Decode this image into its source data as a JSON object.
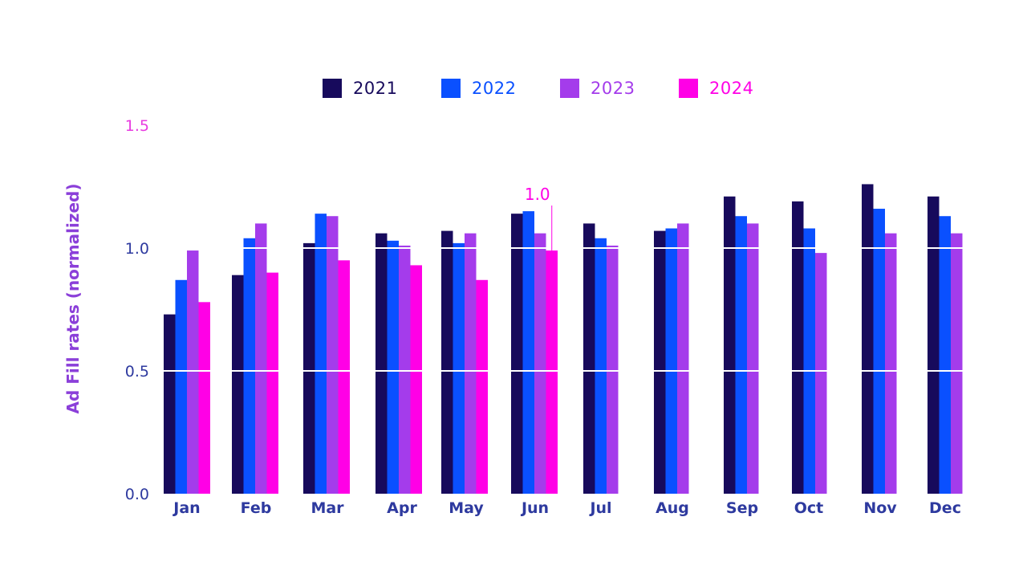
{
  "chart_data": {
    "type": "bar",
    "ylabel": "Ad Fill rates (normalized)",
    "ylim": [
      0,
      1.5
    ],
    "yticks": [
      {
        "value": 0,
        "label": "0.0"
      },
      {
        "value": 0.5,
        "label": "0.5"
      },
      {
        "value": 1.0,
        "label": "1.0"
      },
      {
        "value": 1.5,
        "label": "1.5"
      }
    ],
    "categories": [
      "Jan",
      "Feb",
      "Mar",
      "Apr",
      "May",
      "Jun",
      "Jul",
      "Aug",
      "Sep",
      "Oct",
      "Nov",
      "Dec"
    ],
    "series": [
      {
        "name": "2021",
        "color": "#170A5C",
        "values": [
          0.73,
          0.89,
          1.02,
          1.06,
          1.07,
          1.14,
          1.1,
          1.07,
          1.21,
          1.19,
          1.26,
          1.21
        ]
      },
      {
        "name": "2022",
        "color": "#0A50FF",
        "values": [
          0.87,
          1.04,
          1.14,
          1.03,
          1.02,
          1.15,
          1.04,
          1.08,
          1.13,
          1.08,
          1.16,
          1.13
        ]
      },
      {
        "name": "2023",
        "color": "#A43CEB",
        "values": [
          0.99,
          1.1,
          1.13,
          1.01,
          1.06,
          1.06,
          1.01,
          1.1,
          1.1,
          0.98,
          1.06,
          1.06
        ]
      },
      {
        "name": "2024",
        "color": "#FF00E6",
        "values": [
          0.78,
          0.9,
          0.95,
          0.93,
          0.87,
          0.99,
          null,
          null,
          null,
          null,
          null,
          null
        ]
      }
    ],
    "annotation": {
      "label": "1.0",
      "category": "Jun",
      "series": "2024"
    },
    "grid": "horizontal lines drawn over bars",
    "legend_position": "top-center"
  },
  "colors": {
    "ytick_top": "#E83BE0",
    "ytick_other": "#2E3A9F",
    "xtick": "#2E3A9F",
    "ylabel": "#8B3FD9"
  }
}
